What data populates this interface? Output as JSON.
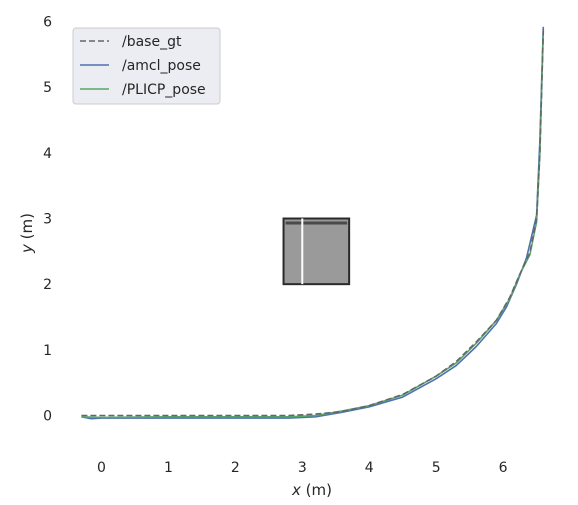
{
  "chart_data": {
    "type": "line",
    "xlabel_var": "x",
    "xlabel_unit": "(m)",
    "ylabel_var": "y",
    "ylabel_unit": "(m)",
    "xlim": [
      -0.5,
      6.85
    ],
    "ylim": [
      -0.45,
      6.1
    ],
    "xticks": [
      0,
      1,
      2,
      3,
      4,
      5,
      6
    ],
    "yticks": [
      0,
      1,
      2,
      3,
      4,
      5,
      6
    ],
    "grid": false,
    "legend_position": "top-left",
    "obstacle": {
      "x": [
        2.72,
        3.7
      ],
      "y": [
        2.0,
        3.0
      ],
      "divider_x": 3.0
    },
    "series": [
      {
        "name": "/base_gt",
        "color": "#666666",
        "dash": true,
        "points": [
          [
            -0.3,
            0.0
          ],
          [
            0.0,
            0.0
          ],
          [
            1.0,
            0.0
          ],
          [
            2.0,
            0.0
          ],
          [
            2.8,
            0.0
          ],
          [
            3.2,
            0.02
          ],
          [
            3.6,
            0.06
          ],
          [
            4.0,
            0.15
          ],
          [
            4.5,
            0.32
          ],
          [
            5.0,
            0.6
          ],
          [
            5.3,
            0.82
          ],
          [
            5.6,
            1.12
          ],
          [
            5.9,
            1.45
          ],
          [
            6.1,
            1.8
          ],
          [
            6.25,
            2.15
          ],
          [
            6.4,
            2.48
          ],
          [
            6.5,
            3.0
          ],
          [
            6.55,
            4.0
          ],
          [
            6.6,
            5.88
          ]
        ]
      },
      {
        "name": "/amcl_pose",
        "color": "#4c72b0",
        "dash": false,
        "points": [
          [
            -0.3,
            -0.02
          ],
          [
            -0.15,
            -0.05
          ],
          [
            0.0,
            -0.04
          ],
          [
            1.0,
            -0.04
          ],
          [
            2.0,
            -0.04
          ],
          [
            2.8,
            -0.04
          ],
          [
            3.2,
            -0.02
          ],
          [
            3.6,
            0.05
          ],
          [
            4.0,
            0.13
          ],
          [
            4.5,
            0.28
          ],
          [
            5.0,
            0.56
          ],
          [
            5.3,
            0.76
          ],
          [
            5.6,
            1.05
          ],
          [
            5.9,
            1.4
          ],
          [
            6.05,
            1.65
          ],
          [
            6.2,
            2.0
          ],
          [
            6.35,
            2.4
          ],
          [
            6.5,
            3.05
          ],
          [
            6.55,
            4.2
          ],
          [
            6.6,
            5.92
          ]
        ]
      },
      {
        "name": "/PLICP_pose",
        "color": "#55a868",
        "dash": false,
        "points": [
          [
            -0.3,
            -0.02
          ],
          [
            0.0,
            -0.03
          ],
          [
            1.0,
            -0.02
          ],
          [
            2.0,
            -0.02
          ],
          [
            2.8,
            -0.02
          ],
          [
            3.2,
            0.0
          ],
          [
            3.6,
            0.07
          ],
          [
            4.0,
            0.15
          ],
          [
            4.5,
            0.31
          ],
          [
            5.0,
            0.6
          ],
          [
            5.3,
            0.8
          ],
          [
            5.6,
            1.1
          ],
          [
            5.9,
            1.45
          ],
          [
            6.1,
            1.78
          ],
          [
            6.25,
            2.15
          ],
          [
            6.4,
            2.45
          ],
          [
            6.5,
            2.95
          ],
          [
            6.55,
            4.0
          ],
          [
            6.6,
            5.85
          ]
        ]
      }
    ]
  }
}
